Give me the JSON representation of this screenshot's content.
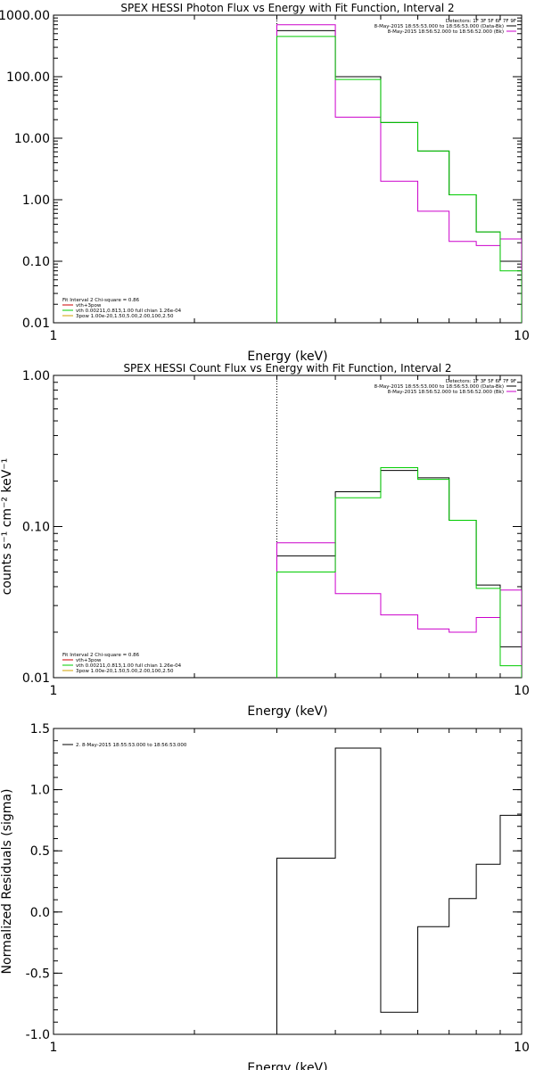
{
  "chart_data": [
    {
      "id": "photon",
      "type": "line",
      "title": "SPEX HESSI Photon Flux vs Energy with Fit Function, Interval 2",
      "xlabel": "Energy (keV)",
      "ylabel": "",
      "xscale": "log",
      "yscale": "log",
      "xlim": [
        1,
        10
      ],
      "ylim": [
        0.01,
        1000
      ],
      "x_ticks": [
        1,
        10
      ],
      "x_tick_labels": [
        "1",
        "10"
      ],
      "y_ticks": [
        0.01,
        0.1,
        1,
        10,
        100,
        1000
      ],
      "y_tick_labels": [
        "0.01",
        "0.10",
        "1.00",
        "10.00",
        "100.00",
        "1000.00"
      ],
      "legend_right": {
        "placement": "top-right",
        "lines": [
          {
            "text": "Detectors: 1F 3F 5F 6F 7F 9F",
            "color": ""
          },
          {
            "text": "8-May-2015 18:55:53.000 to 18:56:53.000 (Data-Bk)",
            "color": "#000000"
          },
          {
            "text": "8-May-2015 18:56:52.000 to 18:56:52.000 (Bk)",
            "color": "#cc00cc"
          }
        ]
      },
      "legend_left": {
        "placement": "bottom-left",
        "header": "Fit Interval 2   Chi-square = 0.86",
        "lines": [
          {
            "text": "vth+3pow",
            "color": "#cc0000"
          },
          {
            "text": "vth 0.00211,0.813,1.00   full chian 1.26e-04",
            "color": "#00cc00"
          },
          {
            "text": "3pow 1.00e-20,1.50,5.00,2.00,100,2.50",
            "color": "#d2a000"
          }
        ]
      },
      "vline_x": 3.0,
      "edges": [
        3.0,
        4.0,
        5.0,
        6.0,
        7.0,
        8.0,
        9.0,
        10.0
      ],
      "series": [
        {
          "color": "#000000",
          "values": [
            560,
            100,
            18,
            6.2,
            1.2,
            0.3,
            0.1
          ]
        },
        {
          "color": "#cc00cc",
          "values": [
            700,
            22,
            2.0,
            0.65,
            0.21,
            0.18,
            0.23
          ]
        },
        {
          "color": "#00cc00",
          "values": [
            450,
            90,
            18,
            6.2,
            1.2,
            0.3,
            0.07
          ]
        }
      ]
    },
    {
      "id": "count",
      "type": "line",
      "title": "SPEX HESSI Count Flux vs Energy with Fit Function, Interval 2",
      "xlabel": "Energy (keV)",
      "ylabel": "counts s⁻¹ cm⁻² keV⁻¹",
      "xscale": "log",
      "yscale": "log",
      "xlim": [
        1,
        10
      ],
      "ylim": [
        0.01,
        1
      ],
      "x_ticks": [
        1,
        10
      ],
      "x_tick_labels": [
        "1",
        "10"
      ],
      "y_ticks": [
        0.01,
        0.1,
        1
      ],
      "y_tick_labels": [
        "0.01",
        "0.10",
        "1.00"
      ],
      "legend_right": {
        "placement": "top-right",
        "lines": [
          {
            "text": "Detectors: 1F 3F 5F 6F 7F 9F",
            "color": ""
          },
          {
            "text": "8-May-2015 18:55:53.000 to 18:56:53.000 (Data-Bk)",
            "color": "#000000"
          },
          {
            "text": "8-May-2015 18:56:52.000 to 18:56:52.000 (Bk)",
            "color": "#cc00cc"
          }
        ]
      },
      "legend_left": {
        "placement": "bottom-left",
        "header": "Fit Interval 2   Chi-square = 0.86",
        "lines": [
          {
            "text": "vth+3pow",
            "color": "#cc0000"
          },
          {
            "text": "vth 0.00211,0.813,1.00   full chian 1.26e-04",
            "color": "#00cc00"
          },
          {
            "text": "3pow 1.00e-20,1.50,5.00,2.00,100,2.50",
            "color": "#d2a000"
          }
        ]
      },
      "vline_x": 3.0,
      "edges": [
        3.0,
        4.0,
        5.0,
        6.0,
        7.0,
        8.0,
        9.0,
        10.0
      ],
      "series": [
        {
          "color": "#000000",
          "values": [
            0.064,
            0.17,
            0.235,
            0.21,
            0.11,
            0.041,
            0.016
          ]
        },
        {
          "color": "#cc00cc",
          "values": [
            0.078,
            0.036,
            0.026,
            0.021,
            0.02,
            0.025,
            0.038
          ]
        },
        {
          "color": "#00cc00",
          "values": [
            0.05,
            0.155,
            0.245,
            0.205,
            0.11,
            0.039,
            0.012
          ]
        }
      ]
    },
    {
      "id": "resid",
      "type": "line",
      "title": "",
      "xlabel": "Energy (keV)",
      "ylabel": "Normalized Residuals (sigma)",
      "xscale": "log",
      "yscale": "linear",
      "xlim": [
        1,
        10
      ],
      "ylim": [
        -1.0,
        1.5
      ],
      "x_ticks": [
        1,
        10
      ],
      "x_tick_labels": [
        "1",
        "10"
      ],
      "y_ticks": [
        -1.0,
        -0.5,
        0.0,
        0.5,
        1.0,
        1.5
      ],
      "y_tick_labels": [
        "-1.0",
        "-0.5",
        "0.0",
        "0.5",
        "1.0",
        "1.5"
      ],
      "legend_left": {
        "placement": "top-left",
        "header": "",
        "lines": [
          {
            "text": "2.  8-May-2015 18:55:53.000 to 18:56:53.000",
            "color": "#000000"
          }
        ]
      },
      "edges": [
        3.0,
        4.0,
        5.0,
        6.0,
        7.0,
        8.0,
        9.0,
        10.0
      ],
      "series": [
        {
          "color": "#000000",
          "values": [
            0.44,
            1.34,
            -0.82,
            -0.12,
            0.11,
            0.39,
            0.79
          ]
        }
      ],
      "drop_to_bottom_left": true
    }
  ]
}
